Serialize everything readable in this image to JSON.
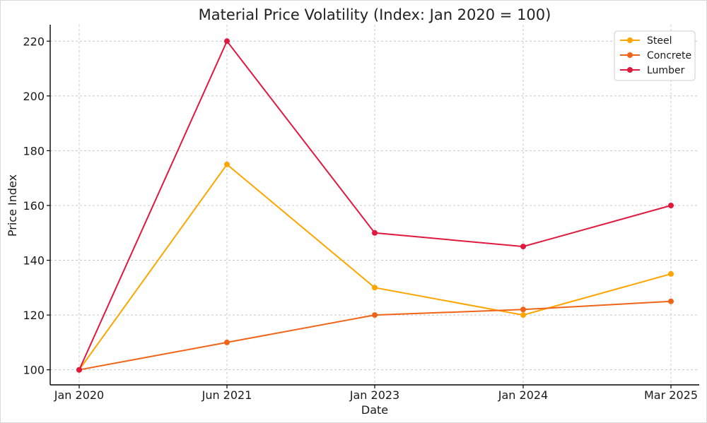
{
  "chart_data": {
    "type": "line",
    "title": "Material Price Volatility (Index: Jan 2020 = 100)",
    "xlabel": "Date",
    "ylabel": "Price Index",
    "categories": [
      "Jan 2020",
      "Jun 2021",
      "Jan 2023",
      "Jan 2024",
      "Mar 2025"
    ],
    "y_ticks": [
      "100",
      "120",
      "140",
      "160",
      "180",
      "200",
      "220"
    ],
    "ylim": [
      94.5,
      226
    ],
    "grid": true,
    "legend_position": "top-right",
    "series": [
      {
        "name": "Steel",
        "color": "#FFA500",
        "values": [
          100,
          175,
          130,
          120,
          135
        ]
      },
      {
        "name": "Concrete",
        "color": "#F06418",
        "values": [
          100,
          110,
          120,
          122,
          125
        ]
      },
      {
        "name": "Lumber",
        "color": "#E0193F",
        "values": [
          100,
          220,
          150,
          145,
          160
        ]
      }
    ]
  }
}
